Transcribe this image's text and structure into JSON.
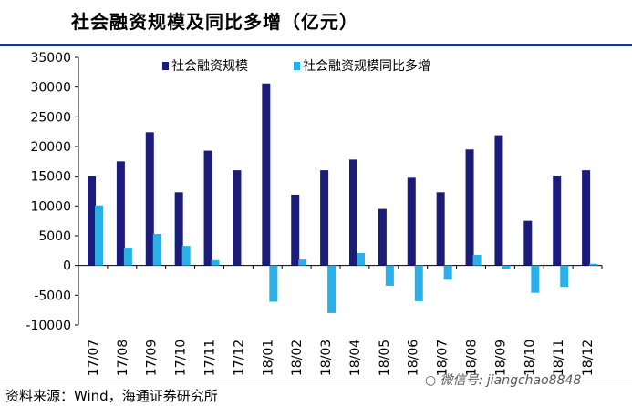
{
  "header": {
    "title": "社会融资规模及同比多增（亿元）"
  },
  "footer": {
    "source": "资料来源：Wind，海通证券研究所",
    "watermark": "微信号: jiangchao8848"
  },
  "colors": {
    "series1": "#1b1b7a",
    "series2": "#2ab0e8",
    "rule": "#1a3a78"
  },
  "chart_data": {
    "type": "bar",
    "title": "社会融资规模及同比多增（亿元）",
    "xlabel": "",
    "ylabel": "",
    "ylim": [
      -10000,
      35000
    ],
    "yticks": [
      35000,
      30000,
      25000,
      20000,
      15000,
      10000,
      5000,
      0,
      -5000,
      -10000
    ],
    "categories": [
      "17/07",
      "17/08",
      "17/09",
      "17/10",
      "17/11",
      "17/12",
      "18/01",
      "18/02",
      "18/03",
      "18/04",
      "18/05",
      "18/06",
      "18/07",
      "18/08",
      "18/09",
      "18/10",
      "18/11",
      "18/12"
    ],
    "series": [
      {
        "name": "社会融资规模",
        "values": [
          15100,
          17500,
          22400,
          12300,
          19300,
          16000,
          30600,
          11900,
          16000,
          17800,
          9500,
          14900,
          12300,
          19500,
          21900,
          7500,
          15100,
          16000
        ]
      },
      {
        "name": "社会融资规模同比多增",
        "values": [
          10100,
          3000,
          5300,
          3300,
          900,
          0,
          -6100,
          1000,
          -8000,
          2100,
          -3400,
          -6000,
          -2400,
          1800,
          -600,
          -4600,
          -3600,
          300
        ]
      }
    ],
    "legend_position": "top-center"
  }
}
